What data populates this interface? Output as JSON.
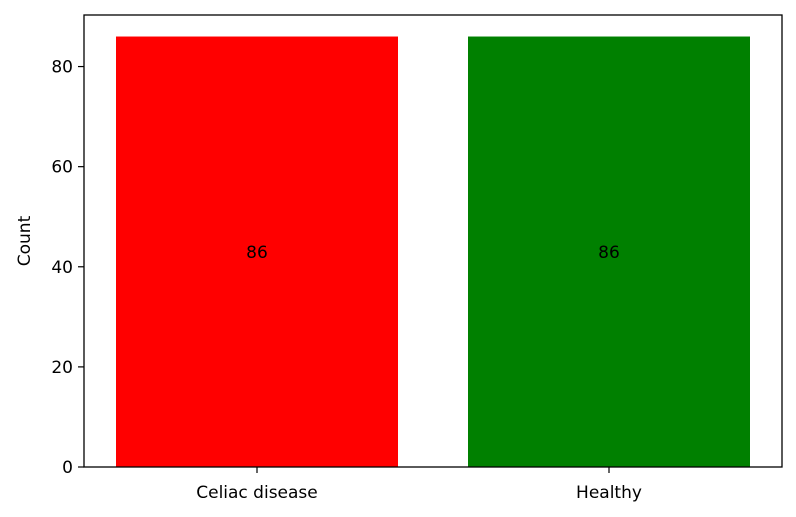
{
  "chart_data": {
    "type": "bar",
    "title": "",
    "xlabel": "",
    "ylabel": "Count",
    "categories": [
      "Celiac disease",
      "Healthy"
    ],
    "values": [
      86,
      86
    ],
    "data_labels": [
      "86",
      "86"
    ],
    "colors": [
      "#ff0000",
      "#008000"
    ],
    "ylim": [
      0,
      90.3
    ],
    "yticks": [
      0,
      20,
      40,
      60,
      80
    ],
    "grid": false,
    "legend": "none"
  }
}
